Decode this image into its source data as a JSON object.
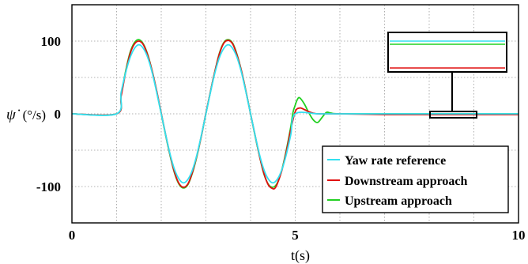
{
  "chart_data": {
    "type": "line",
    "title": "",
    "xlabel": "t(s)",
    "ylabel_prefix": "ψ̇",
    "ylabel_unit": "(°/s)",
    "xlim": [
      0,
      10
    ],
    "ylim": [
      -150,
      150
    ],
    "xticks": [
      0,
      5,
      10
    ],
    "yticks": [
      -100,
      0,
      100
    ],
    "grid": true,
    "legend_position": "bottom-right",
    "inset_zoom": {
      "t_range": [
        8,
        9
      ],
      "y_range": [
        -3,
        3
      ]
    },
    "series": [
      {
        "name": "Yaw rate reference",
        "color": "#33e0f0",
        "x": [
          0,
          1,
          1.1,
          1.2,
          1.3,
          1.4,
          1.5,
          1.6,
          1.7,
          1.8,
          1.9,
          2.0,
          2.1,
          2.2,
          2.3,
          2.4,
          2.5,
          2.6,
          2.7,
          2.8,
          2.9,
          3.0,
          3.1,
          3.2,
          3.3,
          3.4,
          3.5,
          3.6,
          3.7,
          3.8,
          3.9,
          4.0,
          4.1,
          4.2,
          4.3,
          4.4,
          4.5,
          4.6,
          4.7,
          4.8,
          4.9,
          5.0,
          5.5,
          6,
          7,
          8,
          9,
          10
        ],
        "y": [
          0,
          0,
          29,
          56,
          77,
          90,
          95,
          90,
          77,
          56,
          29,
          0,
          -29,
          -56,
          -77,
          -90,
          -95,
          -90,
          -77,
          -56,
          -29,
          0,
          29,
          56,
          77,
          90,
          95,
          90,
          77,
          56,
          29,
          0,
          -29,
          -56,
          -77,
          -90,
          -95,
          -90,
          -77,
          -56,
          -29,
          0,
          0,
          0,
          0,
          0,
          0,
          0
        ]
      },
      {
        "name": "Downstream approach",
        "color": "#e01010",
        "x": [
          0,
          1,
          1.1,
          1.2,
          1.3,
          1.4,
          1.5,
          1.6,
          1.7,
          1.8,
          1.9,
          2.0,
          2.1,
          2.2,
          2.3,
          2.4,
          2.5,
          2.6,
          2.7,
          2.8,
          2.9,
          3.0,
          3.1,
          3.2,
          3.3,
          3.4,
          3.5,
          3.6,
          3.7,
          3.8,
          3.9,
          4.0,
          4.1,
          4.2,
          4.3,
          4.4,
          4.5,
          4.55,
          4.6,
          4.7,
          4.8,
          4.9,
          5.0,
          5.1,
          5.2,
          5.3,
          5.4,
          5.5,
          5.7,
          6,
          7,
          8,
          9,
          10
        ],
        "y": [
          0,
          0,
          24,
          56,
          82,
          96,
          100,
          95,
          80,
          58,
          31,
          1,
          -29,
          -57,
          -81,
          -96,
          -101,
          -96,
          -80,
          -57,
          -30,
          1,
          30,
          58,
          82,
          97,
          101,
          96,
          80,
          58,
          30,
          0,
          -29,
          -58,
          -82,
          -98,
          -103,
          -102,
          -96,
          -78,
          -52,
          -22,
          3,
          8,
          6,
          3,
          1,
          0,
          0,
          0,
          -1,
          -1,
          -1,
          -1
        ]
      },
      {
        "name": "Upstream approach",
        "color": "#22d022",
        "x": [
          0,
          1,
          1.1,
          1.2,
          1.3,
          1.4,
          1.5,
          1.6,
          1.7,
          1.8,
          1.9,
          2.0,
          2.1,
          2.2,
          2.3,
          2.4,
          2.5,
          2.6,
          2.7,
          2.8,
          2.9,
          3.0,
          3.1,
          3.2,
          3.3,
          3.4,
          3.5,
          3.6,
          3.7,
          3.8,
          3.9,
          4.0,
          4.1,
          4.2,
          4.3,
          4.4,
          4.5,
          4.6,
          4.7,
          4.8,
          4.9,
          4.95,
          5.0,
          5.05,
          5.1,
          5.2,
          5.3,
          5.4,
          5.5,
          5.6,
          5.7,
          5.8,
          6.0,
          7,
          8,
          9,
          10
        ],
        "y": [
          0,
          0,
          26,
          58,
          84,
          98,
          102,
          96,
          81,
          58,
          30,
          0,
          -30,
          -58,
          -82,
          -97,
          -102,
          -97,
          -81,
          -58,
          -30,
          0,
          30,
          58,
          83,
          98,
          102,
          97,
          81,
          58,
          30,
          0,
          -30,
          -58,
          -83,
          -97,
          -101,
          -95,
          -77,
          -50,
          -18,
          2,
          12,
          20,
          22,
          14,
          2,
          -8,
          -12,
          -5,
          2,
          1,
          0,
          0,
          0,
          0,
          0
        ]
      }
    ]
  }
}
